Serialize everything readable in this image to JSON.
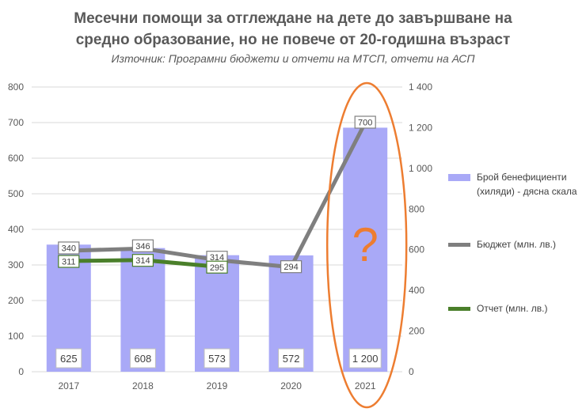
{
  "title_line1": "Месечни помощи за отглеждане на дете до завършване на",
  "title_line2": "средно образование, но не повече от 20-годишна възраст",
  "subtitle": "Източник: Програмни бюджети и отчети на МТСП, отчети на АСП",
  "annotation_symbol": "?",
  "colors": {
    "bars": "#a9a9f7",
    "budget": "#7f7f7f",
    "report": "#4a7f2a",
    "annotation": "#ed7d31",
    "grid": "#d9d9d9"
  },
  "chart_data": {
    "type": "bar+line",
    "categories": [
      "2017",
      "2018",
      "2019",
      "2020",
      "2021"
    ],
    "left_axis": {
      "ylim": [
        0,
        800
      ],
      "ticks": [
        "0",
        "100",
        "200",
        "300",
        "400",
        "500",
        "600",
        "700",
        "800"
      ]
    },
    "right_axis": {
      "ylim": [
        0,
        1400
      ],
      "ticks": [
        "0",
        "200",
        "400",
        "600",
        "800",
        "1 000",
        "1 200",
        "1 400"
      ]
    },
    "series": [
      {
        "name": "Брой бенефициенти (хиляди) - дясна скала",
        "type": "bar",
        "axis": "right",
        "values": [
          625,
          608,
          573,
          572,
          1200
        ],
        "labels": [
          "625",
          "608",
          "573",
          "572",
          "1 200"
        ]
      },
      {
        "name": "Бюджет (млн. лв.)",
        "type": "line",
        "axis": "left",
        "values": [
          340,
          346,
          314,
          294,
          700
        ],
        "labels": [
          "340",
          "346",
          "314",
          "294",
          "700"
        ]
      },
      {
        "name": "Отчет (млн. лв.)",
        "type": "line",
        "axis": "left",
        "values": [
          311,
          314,
          295,
          null,
          null
        ],
        "labels": [
          "311",
          "314",
          "295",
          "",
          ""
        ]
      }
    ],
    "legend_position": "right",
    "grid": true
  },
  "legend": [
    {
      "line1": "Брой бенефициенти",
      "line2": "(хиляди) - дясна скала"
    },
    {
      "line1": "Бюджет (млн. лв.)"
    },
    {
      "line1": "Отчет (млн. лв.)"
    }
  ]
}
